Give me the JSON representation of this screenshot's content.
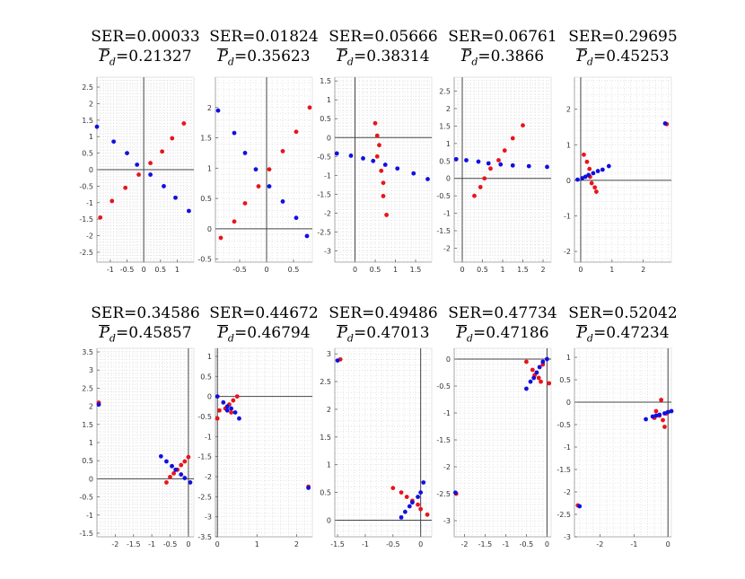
{
  "chart_data": [
    {
      "type": "scatter",
      "ser": "0.00033",
      "pd": "0.21327",
      "xlim": [
        -1.4,
        1.5
      ],
      "ylim": [
        -2.8,
        2.8
      ],
      "xticks": [
        -1,
        -0.5,
        0,
        0.5,
        1
      ],
      "yticks": [
        -2.5,
        -2,
        -1.5,
        -1,
        -0.5,
        0,
        0.5,
        1,
        1.5,
        2,
        2.5
      ],
      "series": [
        {
          "name": "red",
          "color": "#e8141c",
          "points": [
            [
              -1.3,
              -1.45
            ],
            [
              -0.95,
              -0.95
            ],
            [
              -0.55,
              -0.55
            ],
            [
              -0.15,
              -0.15
            ],
            [
              0.2,
              0.2
            ],
            [
              0.55,
              0.55
            ],
            [
              0.85,
              0.95
            ],
            [
              1.2,
              1.4
            ]
          ]
        },
        {
          "name": "blue",
          "color": "#1010e0",
          "points": [
            [
              -1.4,
              1.3
            ],
            [
              -0.9,
              0.85
            ],
            [
              -0.5,
              0.5
            ],
            [
              -0.2,
              0.15
            ],
            [
              0.2,
              -0.15
            ],
            [
              0.6,
              -0.5
            ],
            [
              0.95,
              -0.85
            ],
            [
              1.35,
              -1.25
            ]
          ]
        }
      ]
    },
    {
      "type": "scatter",
      "ser": "0.01824",
      "pd": "0.35623",
      "xlim": [
        -0.95,
        0.85
      ],
      "ylim": [
        -0.55,
        2.5
      ],
      "xticks": [
        -0.5,
        0,
        0.5
      ],
      "yticks": [
        -0.5,
        0,
        0.5,
        1,
        1.5,
        2
      ],
      "series": [
        {
          "name": "red",
          "color": "#e8141c",
          "points": [
            [
              -0.85,
              -0.15
            ],
            [
              -0.6,
              0.12
            ],
            [
              -0.4,
              0.42
            ],
            [
              -0.15,
              0.7
            ],
            [
              0.05,
              0.98
            ],
            [
              0.3,
              1.28
            ],
            [
              0.55,
              1.6
            ],
            [
              0.8,
              2.0
            ]
          ]
        },
        {
          "name": "blue",
          "color": "#1010e0",
          "points": [
            [
              -0.9,
              1.95
            ],
            [
              -0.6,
              1.58
            ],
            [
              -0.4,
              1.25
            ],
            [
              -0.2,
              0.98
            ],
            [
              0.05,
              0.7
            ],
            [
              0.3,
              0.45
            ],
            [
              0.55,
              0.18
            ],
            [
              0.75,
              -0.12
            ]
          ]
        }
      ]
    },
    {
      "type": "scatter",
      "ser": "0.05666",
      "pd": "0.38314",
      "xlim": [
        -0.5,
        1.9
      ],
      "ylim": [
        -3.3,
        1.6
      ],
      "xticks": [
        0,
        0.5,
        1,
        1.5
      ],
      "yticks": [
        -3,
        -2.5,
        -2,
        -1.5,
        -1,
        -0.5,
        0,
        0.5,
        1,
        1.5
      ],
      "series": [
        {
          "name": "red",
          "color": "#e8141c",
          "points": [
            [
              0.5,
              0.38
            ],
            [
              0.55,
              0.05
            ],
            [
              0.6,
              -0.2
            ],
            [
              0.55,
              -0.5
            ],
            [
              0.65,
              -0.88
            ],
            [
              0.7,
              -1.2
            ],
            [
              0.7,
              -1.55
            ],
            [
              0.78,
              -2.05
            ]
          ]
        },
        {
          "name": "blue",
          "color": "#1010e0",
          "points": [
            [
              -0.45,
              -0.42
            ],
            [
              -0.1,
              -0.48
            ],
            [
              0.2,
              -0.55
            ],
            [
              0.45,
              -0.62
            ],
            [
              0.75,
              -0.72
            ],
            [
              1.05,
              -0.82
            ],
            [
              1.45,
              -0.95
            ],
            [
              1.8,
              -1.1
            ]
          ]
        }
      ]
    },
    {
      "type": "scatter",
      "ser": "0.06761",
      "pd": "0.3866",
      "xlim": [
        -0.2,
        2.2
      ],
      "ylim": [
        -2.4,
        2.9
      ],
      "xticks": [
        0,
        0.5,
        1,
        1.5,
        2
      ],
      "yticks": [
        -2,
        -1.5,
        -1,
        -0.5,
        0,
        0.5,
        1,
        1.5,
        2,
        2.5
      ],
      "series": [
        {
          "name": "red",
          "color": "#e8141c",
          "points": [
            [
              0.3,
              -0.5
            ],
            [
              0.45,
              -0.25
            ],
            [
              0.55,
              0.0
            ],
            [
              0.7,
              0.28
            ],
            [
              0.9,
              0.52
            ],
            [
              1.05,
              0.8
            ],
            [
              1.25,
              1.15
            ],
            [
              1.5,
              1.52
            ]
          ]
        },
        {
          "name": "blue",
          "color": "#1010e0",
          "points": [
            [
              -0.15,
              0.55
            ],
            [
              0.1,
              0.52
            ],
            [
              0.4,
              0.48
            ],
            [
              0.65,
              0.43
            ],
            [
              0.95,
              0.4
            ],
            [
              1.25,
              0.37
            ],
            [
              1.65,
              0.35
            ],
            [
              2.1,
              0.33
            ]
          ]
        }
      ]
    },
    {
      "type": "scatter",
      "ser": "0.29695",
      "pd": "0.45253",
      "xlim": [
        -0.2,
        2.9
      ],
      "ylim": [
        -2.3,
        2.9
      ],
      "xticks": [
        0,
        1,
        2
      ],
      "yticks": [
        -2,
        -1,
        0,
        1,
        2
      ],
      "series": [
        {
          "name": "red",
          "color": "#e8141c",
          "points": [
            [
              0.1,
              0.72
            ],
            [
              0.2,
              0.52
            ],
            [
              0.28,
              0.32
            ],
            [
              0.3,
              0.1
            ],
            [
              0.35,
              -0.08
            ],
            [
              0.45,
              -0.2
            ],
            [
              0.5,
              -0.32
            ],
            [
              2.75,
              1.58
            ]
          ]
        },
        {
          "name": "blue",
          "color": "#1010e0",
          "points": [
            [
              -0.1,
              0.02
            ],
            [
              0.05,
              0.06
            ],
            [
              0.15,
              0.1
            ],
            [
              0.25,
              0.15
            ],
            [
              0.4,
              0.2
            ],
            [
              0.55,
              0.26
            ],
            [
              0.7,
              0.3
            ],
            [
              0.9,
              0.4
            ],
            [
              2.7,
              1.6
            ]
          ]
        }
      ]
    },
    {
      "type": "scatter",
      "ser": "0.34586",
      "pd": "0.45857",
      "xlim": [
        -2.5,
        0.15
      ],
      "ylim": [
        -1.6,
        3.6
      ],
      "xticks": [
        -2,
        -1.5,
        -1,
        -0.5,
        0
      ],
      "yticks": [
        -1.5,
        -1,
        -0.5,
        0,
        0.5,
        1,
        1.5,
        2,
        2.5,
        3,
        3.5
      ],
      "series": [
        {
          "name": "red",
          "color": "#e8141c",
          "points": [
            [
              -2.45,
              2.1
            ],
            [
              -0.6,
              -0.1
            ],
            [
              -0.5,
              0.05
            ],
            [
              -0.4,
              0.15
            ],
            [
              -0.3,
              0.25
            ],
            [
              -0.2,
              0.38
            ],
            [
              -0.1,
              0.48
            ],
            [
              0.0,
              0.6
            ]
          ]
        },
        {
          "name": "blue",
          "color": "#1010e0",
          "points": [
            [
              -2.45,
              2.05
            ],
            [
              -0.75,
              0.62
            ],
            [
              -0.6,
              0.48
            ],
            [
              -0.45,
              0.35
            ],
            [
              -0.35,
              0.25
            ],
            [
              -0.2,
              0.12
            ],
            [
              -0.1,
              0.02
            ],
            [
              0.05,
              -0.1
            ]
          ]
        }
      ]
    },
    {
      "type": "scatter",
      "ser": "0.44672",
      "pd": "0.46794",
      "xlim": [
        -0.05,
        2.4
      ],
      "ylim": [
        -3.5,
        1.2
      ],
      "xticks": [
        0,
        1,
        2
      ],
      "yticks": [
        -3.5,
        -3,
        -2.5,
        -2,
        -1.5,
        -1,
        -0.5,
        0,
        0.5,
        1
      ],
      "series": [
        {
          "name": "red",
          "color": "#e8141c",
          "points": [
            [
              0.0,
              -0.55
            ],
            [
              0.05,
              -0.35
            ],
            [
              0.2,
              -0.3
            ],
            [
              0.3,
              -0.2
            ],
            [
              0.4,
              -0.1
            ],
            [
              0.5,
              0.0
            ],
            [
              0.35,
              -0.4
            ],
            [
              2.3,
              -2.25
            ]
          ]
        },
        {
          "name": "blue",
          "color": "#1010e0",
          "points": [
            [
              0.0,
              0.0
            ],
            [
              0.15,
              -0.15
            ],
            [
              0.25,
              -0.25
            ],
            [
              0.35,
              -0.3
            ],
            [
              0.45,
              -0.4
            ],
            [
              0.55,
              -0.55
            ],
            [
              0.25,
              -0.35
            ],
            [
              2.3,
              -2.28
            ]
          ]
        }
      ]
    },
    {
      "type": "scatter",
      "ser": "0.49486",
      "pd": "0.47013",
      "xlim": [
        -1.55,
        0.2
      ],
      "ylim": [
        -0.3,
        3.1
      ],
      "xticks": [
        -1.5,
        -1,
        -0.5,
        0
      ],
      "yticks": [
        0,
        0.5,
        1,
        1.5,
        2,
        2.5,
        3
      ],
      "series": [
        {
          "name": "red",
          "color": "#e8141c",
          "points": [
            [
              -1.45,
              2.9
            ],
            [
              -0.5,
              0.58
            ],
            [
              -0.35,
              0.5
            ],
            [
              -0.25,
              0.42
            ],
            [
              -0.15,
              0.35
            ],
            [
              -0.05,
              0.28
            ],
            [
              0.0,
              0.2
            ],
            [
              0.12,
              0.1
            ]
          ]
        },
        {
          "name": "blue",
          "color": "#1010e0",
          "points": [
            [
              -1.5,
              2.88
            ],
            [
              -0.35,
              0.05
            ],
            [
              -0.28,
              0.15
            ],
            [
              -0.2,
              0.25
            ],
            [
              -0.15,
              0.32
            ],
            [
              -0.05,
              0.42
            ],
            [
              0.0,
              0.5
            ],
            [
              0.05,
              0.68
            ]
          ]
        }
      ]
    },
    {
      "type": "scatter",
      "ser": "0.47734",
      "pd": "0.47186",
      "xlim": [
        -2.25,
        0.1
      ],
      "ylim": [
        -3.3,
        0.2
      ],
      "xticks": [
        -2,
        -1.5,
        -1,
        -0.5,
        0
      ],
      "yticks": [
        -3,
        -2.5,
        -2,
        -1.5,
        -1,
        -0.5,
        0
      ],
      "series": [
        {
          "name": "red",
          "color": "#e8141c",
          "points": [
            [
              -2.2,
              -2.5
            ],
            [
              -0.5,
              -0.05
            ],
            [
              -0.35,
              -0.2
            ],
            [
              -0.3,
              -0.3
            ],
            [
              -0.2,
              -0.35
            ],
            [
              -0.15,
              -0.42
            ],
            [
              -0.1,
              -0.1
            ],
            [
              0.05,
              -0.45
            ]
          ]
        },
        {
          "name": "blue",
          "color": "#1010e0",
          "points": [
            [
              -2.22,
              -2.48
            ],
            [
              -0.5,
              -0.55
            ],
            [
              -0.4,
              -0.42
            ],
            [
              -0.32,
              -0.35
            ],
            [
              -0.25,
              -0.25
            ],
            [
              -0.18,
              -0.15
            ],
            [
              -0.1,
              -0.05
            ],
            [
              0.0,
              0.0
            ]
          ]
        }
      ]
    },
    {
      "type": "scatter",
      "ser": "0.52042",
      "pd": "0.47234",
      "xlim": [
        -2.75,
        0.1
      ],
      "ylim": [
        -3.0,
        1.2
      ],
      "xticks": [
        -2,
        -1,
        0
      ],
      "yticks": [
        -3,
        -2.5,
        -2,
        -1.5,
        -1,
        -0.5,
        0,
        0.5,
        1
      ],
      "series": [
        {
          "name": "red",
          "color": "#e8141c",
          "points": [
            [
              -2.65,
              -2.3
            ],
            [
              -0.4,
              -0.35
            ],
            [
              -0.35,
              -0.2
            ],
            [
              -0.25,
              -0.3
            ],
            [
              -0.15,
              -0.4
            ],
            [
              -0.1,
              -0.55
            ],
            [
              -0.2,
              0.05
            ],
            [
              -0.05,
              -0.25
            ]
          ]
        },
        {
          "name": "blue",
          "color": "#1010e0",
          "points": [
            [
              -2.6,
              -2.32
            ],
            [
              -0.65,
              -0.38
            ],
            [
              -0.45,
              -0.32
            ],
            [
              -0.35,
              -0.3
            ],
            [
              -0.25,
              -0.28
            ],
            [
              -0.1,
              -0.25
            ],
            [
              0.0,
              -0.22
            ],
            [
              0.1,
              -0.2
            ]
          ]
        }
      ]
    }
  ],
  "labels": {
    "ser_prefix": "SER=",
    "pd_symbol": "P",
    "pd_sub": "d",
    "pd_eq": "="
  }
}
